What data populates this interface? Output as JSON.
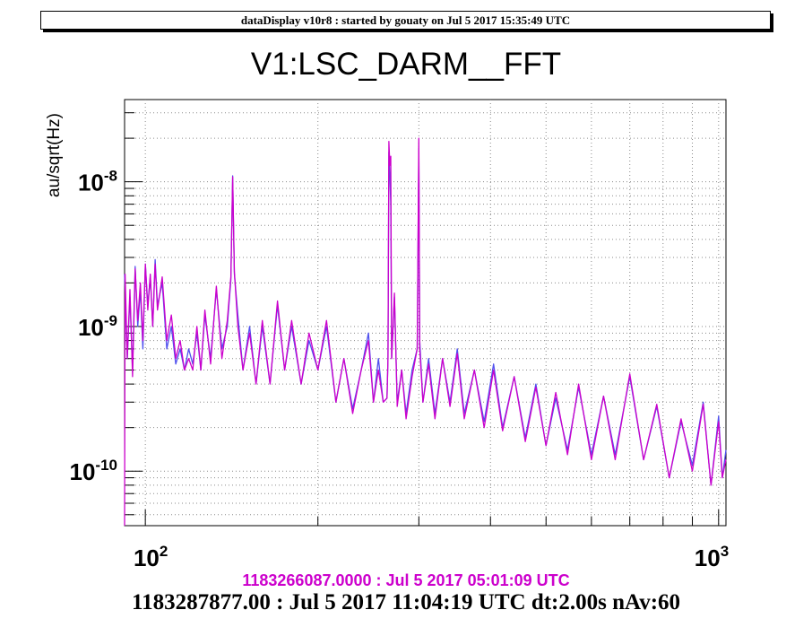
{
  "header": {
    "text": "dataDisplay v10r8 : started by gouaty on Jul  5 2017 15:35:49 UTC"
  },
  "footer": {
    "reference_time": "1183266087.0000 : Jul  5 2017 05:01:09 UTC",
    "current_time": "1183287877.00 : Jul  5 2017 11:04:19 UTC dt:2.00s nAv:60"
  },
  "chart_data": {
    "type": "line",
    "title": "V1:LSC_DARM__FFT",
    "xlabel": "",
    "ylabel": "au/sqrt(Hz)",
    "x_scale": "log",
    "y_scale": "log",
    "xlim": [
      92,
      1030
    ],
    "ylim": [
      4.2e-11,
      3.7e-08
    ],
    "grid": true,
    "x_ticks": [
      {
        "value": 100,
        "base": "10",
        "exp": "2"
      },
      {
        "value": 1000,
        "base": "10",
        "exp": "3"
      }
    ],
    "y_ticks": [
      {
        "value": 1e-10,
        "base": "10",
        "exp": "-10"
      },
      {
        "value": 1e-09,
        "base": "10",
        "exp": "-9"
      },
      {
        "value": 1e-08,
        "base": "10",
        "exp": "-8"
      }
    ],
    "series": [
      {
        "color": "#5050ee",
        "points": [
          [
            92,
            2.3e-09
          ],
          [
            93,
            6e-10
          ],
          [
            94,
            1.6e-09
          ],
          [
            95,
            5e-10
          ],
          [
            96,
            2.6e-09
          ],
          [
            97,
            1e-09
          ],
          [
            98,
            1.8e-09
          ],
          [
            99,
            7e-10
          ],
          [
            100,
            2.7e-09
          ],
          [
            101,
            1.4e-09
          ],
          [
            102,
            2.2e-09
          ],
          [
            103,
            1e-09
          ],
          [
            104,
            2.9e-09
          ],
          [
            105,
            1.4e-09
          ],
          [
            107,
            2e-09
          ],
          [
            109,
            7e-10
          ],
          [
            111,
            1e-09
          ],
          [
            113,
            5.5e-10
          ],
          [
            115,
            7e-10
          ],
          [
            117,
            5e-10
          ],
          [
            119,
            7e-10
          ],
          [
            121,
            5.5e-10
          ],
          [
            123,
            9e-10
          ],
          [
            125,
            5e-10
          ],
          [
            127,
            1.2e-09
          ],
          [
            130,
            6e-10
          ],
          [
            133,
            1.8e-09
          ],
          [
            136,
            7e-10
          ],
          [
            139,
            1e-09
          ],
          [
            141,
            2.1e-09
          ],
          [
            142,
            1.1e-08
          ],
          [
            143,
            2.3e-09
          ],
          [
            145,
            1.2e-09
          ],
          [
            148,
            5e-10
          ],
          [
            152,
            1e-09
          ],
          [
            156,
            4e-10
          ],
          [
            160,
            1e-09
          ],
          [
            165,
            4e-10
          ],
          [
            170,
            1.4e-09
          ],
          [
            175,
            5e-10
          ],
          [
            180,
            1e-09
          ],
          [
            187,
            4e-10
          ],
          [
            193,
            8e-10
          ],
          [
            200,
            5e-10
          ],
          [
            207,
            1e-09
          ],
          [
            215,
            3e-10
          ],
          [
            222,
            6e-10
          ],
          [
            230,
            2.7e-10
          ],
          [
            238,
            5e-10
          ],
          [
            245,
            9e-10
          ],
          [
            250,
            3e-10
          ],
          [
            255,
            6e-10
          ],
          [
            260,
            3e-10
          ],
          [
            264,
            3.2e-10
          ],
          [
            265,
            6e-10
          ],
          [
            266,
            1.6e-08
          ],
          [
            267,
            1.1e-08
          ],
          [
            268,
            7e-09
          ],
          [
            269,
            6e-10
          ],
          [
            272,
            1.6e-09
          ],
          [
            275,
            3e-10
          ],
          [
            280,
            5e-10
          ],
          [
            285,
            2.5e-10
          ],
          [
            292,
            5e-10
          ],
          [
            298,
            7e-10
          ],
          [
            300,
            1.7e-08
          ],
          [
            301,
            8e-10
          ],
          [
            305,
            3e-10
          ],
          [
            312,
            6e-10
          ],
          [
            320,
            2.5e-10
          ],
          [
            330,
            6e-10
          ],
          [
            340,
            3e-10
          ],
          [
            350,
            7e-10
          ],
          [
            360,
            2.5e-10
          ],
          [
            375,
            5e-10
          ],
          [
            390,
            2.2e-10
          ],
          [
            405,
            5.5e-10
          ],
          [
            420,
            2e-10
          ],
          [
            440,
            4.5e-10
          ],
          [
            460,
            1.7e-10
          ],
          [
            480,
            4e-10
          ],
          [
            500,
            1.5e-10
          ],
          [
            520,
            3.2e-10
          ],
          [
            545,
            1.4e-10
          ],
          [
            570,
            3.8e-10
          ],
          [
            600,
            1.3e-10
          ],
          [
            630,
            3.3e-10
          ],
          [
            660,
            1.3e-10
          ],
          [
            700,
            4.5e-10
          ],
          [
            740,
            1.2e-10
          ],
          [
            780,
            2.8e-10
          ],
          [
            820,
            9e-11
          ],
          [
            860,
            2.2e-10
          ],
          [
            900,
            1.1e-10
          ],
          [
            940,
            3e-10
          ],
          [
            970,
            8e-11
          ],
          [
            1000,
            2.4e-10
          ],
          [
            1015,
            9e-11
          ],
          [
            1030,
            1.4e-10
          ]
        ]
      },
      {
        "color": "#cc00cc",
        "points": [
          [
            92,
            4.2e-11
          ],
          [
            92.2,
            2.3e-09
          ],
          [
            93,
            6e-10
          ],
          [
            94,
            1.8e-09
          ],
          [
            95,
            4.5e-10
          ],
          [
            96,
            2.5e-09
          ],
          [
            97,
            1.1e-09
          ],
          [
            98,
            2e-09
          ],
          [
            99,
            8e-10
          ],
          [
            100,
            2.7e-09
          ],
          [
            101,
            1.3e-09
          ],
          [
            102,
            2.3e-09
          ],
          [
            103,
            1e-09
          ],
          [
            104,
            2.7e-09
          ],
          [
            105,
            1.3e-09
          ],
          [
            107,
            2.2e-09
          ],
          [
            109,
            8e-10
          ],
          [
            111,
            1.2e-09
          ],
          [
            113,
            6e-10
          ],
          [
            115,
            8e-10
          ],
          [
            117,
            5e-10
          ],
          [
            119,
            6e-10
          ],
          [
            121,
            5e-10
          ],
          [
            123,
            1e-09
          ],
          [
            125,
            5e-10
          ],
          [
            127,
            1.3e-09
          ],
          [
            130,
            5.5e-10
          ],
          [
            133,
            1.9e-09
          ],
          [
            136,
            6e-10
          ],
          [
            139,
            1.1e-09
          ],
          [
            141,
            2.2e-09
          ],
          [
            142,
            1.08e-08
          ],
          [
            143,
            2.4e-09
          ],
          [
            145,
            1e-09
          ],
          [
            148,
            5e-10
          ],
          [
            152,
            9e-10
          ],
          [
            156,
            4e-10
          ],
          [
            160,
            1.1e-09
          ],
          [
            165,
            4e-10
          ],
          [
            170,
            1.5e-09
          ],
          [
            175,
            5e-10
          ],
          [
            180,
            1.1e-09
          ],
          [
            187,
            4e-10
          ],
          [
            193,
            9e-10
          ],
          [
            200,
            5e-10
          ],
          [
            207,
            1.1e-09
          ],
          [
            215,
            3e-10
          ],
          [
            222,
            6e-10
          ],
          [
            230,
            2.5e-10
          ],
          [
            238,
            5e-10
          ],
          [
            245,
            8e-10
          ],
          [
            250,
            3e-10
          ],
          [
            255,
            5e-10
          ],
          [
            260,
            3e-10
          ],
          [
            264,
            3.2e-10
          ],
          [
            265,
            6e-10
          ],
          [
            266,
            1.9e-08
          ],
          [
            267,
            1.3e-08
          ],
          [
            268,
            1.5e-08
          ],
          [
            269,
            6e-10
          ],
          [
            272,
            1.7e-09
          ],
          [
            275,
            2.8e-10
          ],
          [
            280,
            5e-10
          ],
          [
            285,
            2.3e-10
          ],
          [
            292,
            4.5e-10
          ],
          [
            298,
            7e-10
          ],
          [
            300,
            2e-08
          ],
          [
            301,
            7e-10
          ],
          [
            305,
            3e-10
          ],
          [
            312,
            5.5e-10
          ],
          [
            320,
            2.3e-10
          ],
          [
            330,
            6e-10
          ],
          [
            340,
            2.8e-10
          ],
          [
            350,
            6.5e-10
          ],
          [
            360,
            2.3e-10
          ],
          [
            375,
            5e-10
          ],
          [
            390,
            2e-10
          ],
          [
            405,
            5e-10
          ],
          [
            420,
            1.9e-10
          ],
          [
            440,
            4.5e-10
          ],
          [
            460,
            1.6e-10
          ],
          [
            480,
            3.8e-10
          ],
          [
            500,
            1.5e-10
          ],
          [
            520,
            3.5e-10
          ],
          [
            545,
            1.3e-10
          ],
          [
            570,
            4e-10
          ],
          [
            600,
            1.2e-10
          ],
          [
            630,
            3.3e-10
          ],
          [
            660,
            1.2e-10
          ],
          [
            700,
            4.7e-10
          ],
          [
            740,
            1.2e-10
          ],
          [
            780,
            2.9e-10
          ],
          [
            820,
            9e-11
          ],
          [
            860,
            2.3e-10
          ],
          [
            900,
            1e-10
          ],
          [
            940,
            2.9e-10
          ],
          [
            970,
            8e-11
          ],
          [
            1000,
            2.2e-10
          ],
          [
            1015,
            9e-11
          ],
          [
            1030,
            1.2e-10
          ]
        ]
      }
    ]
  }
}
